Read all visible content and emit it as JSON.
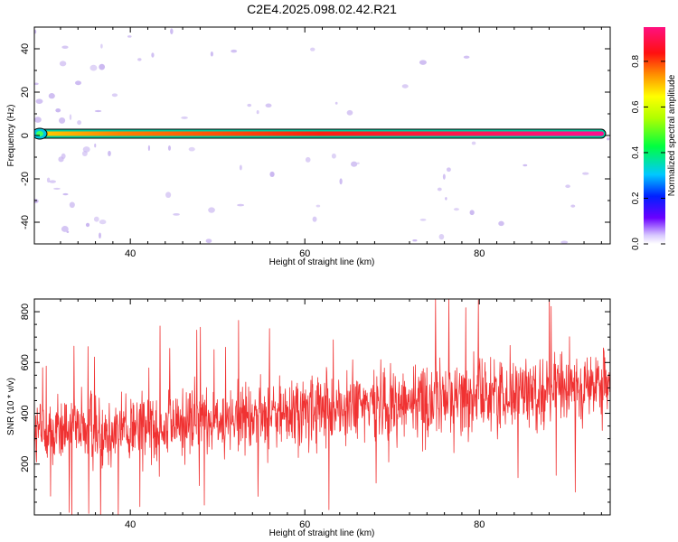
{
  "title": "C2E4.2025.098.02.42.R21",
  "colors": {
    "trace": "#f03232",
    "frame": "#000000",
    "blob": "#c8b4f0"
  },
  "chart_data": [
    {
      "type": "heatmap",
      "name": "spectrogram",
      "xlabel": "Height of straight line (km)",
      "ylabel": "Frequency (Hz)",
      "xlim": [
        29,
        95
      ],
      "ylim": [
        -50,
        50
      ],
      "x_ticks": [
        40,
        60,
        80
      ],
      "y_ticks": [
        -40,
        -20,
        0,
        20,
        40
      ],
      "dominant_frequency_hz": 0,
      "signal_band": {
        "x_start": 29.5,
        "x_end": 93.5,
        "freq_center": 0,
        "freq_halfwidth": 1,
        "amplitude_start": 0.35,
        "amplitude_end": 0.92
      },
      "colorbar": {
        "label": "Normalized spectral amplitude",
        "min": 0,
        "max": 0.95,
        "ticks": [
          0.0,
          0.2,
          0.4,
          0.6,
          0.8
        ]
      }
    },
    {
      "type": "line",
      "name": "snr",
      "xlabel": "Height of straight line (km)",
      "ylabel": "SNR (10 * v/v)",
      "xlim": [
        29,
        95
      ],
      "ylim": [
        0,
        850
      ],
      "x_ticks": [
        40,
        60,
        80
      ],
      "y_ticks": [
        200,
        400,
        600,
        800
      ],
      "trend": {
        "x": [
          29,
          40,
          50,
          60,
          70,
          80,
          90,
          95
        ],
        "mean": [
          320,
          345,
          380,
          400,
          440,
          470,
          500,
          510
        ],
        "spread": [
          110,
          115,
          115,
          120,
          120,
          115,
          110,
          100
        ]
      },
      "extremes": [
        {
          "x": 75,
          "y": 850
        },
        {
          "x": 76.5,
          "y": 850
        },
        {
          "x": 33,
          "y": 10
        },
        {
          "x": 91,
          "y": 90
        }
      ]
    }
  ]
}
